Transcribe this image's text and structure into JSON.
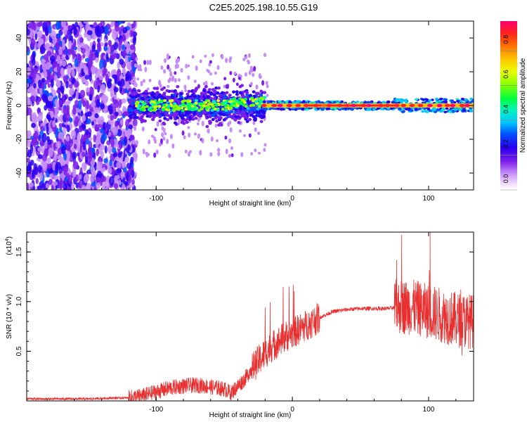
{
  "title": "C2E5.2025.198.10.55.G19",
  "spectrogram": {
    "type": "heatmap",
    "xlabel": "Height of straight line (km)",
    "ylabel": "Frequency (Hz)",
    "xlim": [
      -195,
      133
    ],
    "ylim": [
      -50,
      50
    ],
    "xticks": [
      -100,
      0,
      100
    ],
    "yticks": [
      -40,
      -20,
      0,
      20,
      40
    ],
    "colorbar": {
      "label": "Normalized spectral amplitude",
      "range": [
        0,
        0.97
      ],
      "ticks": [
        "0.0",
        "0.2",
        "0.4",
        "0.6",
        "0.8"
      ],
      "tick_values": [
        0,
        0.2,
        0.4,
        0.6,
        0.8
      ]
    }
  },
  "chart_data": {
    "type": "line",
    "title": "",
    "xlabel": "Height of straight line (km)",
    "ylabel": "SNR (10 * v/v)",
    "yscale_label": "(x10",
    "yscale_exp": "4",
    "yscale_close": ")",
    "xlim": [
      -195,
      133
    ],
    "ylim": [
      0,
      1.7
    ],
    "xticks": [
      -100,
      0,
      100
    ],
    "yticks": [
      "0.5",
      "1.0",
      "1.5"
    ],
    "ytick_values": [
      0.5,
      1.0,
      1.5
    ],
    "color": "#e83030",
    "series": [
      {
        "x": [
          -195,
          -170,
          -150,
          -130,
          -120,
          -110,
          -100,
          -90,
          -80,
          -70,
          -60,
          -50,
          -45,
          -40,
          -35,
          -30,
          -25,
          -20,
          -15,
          -10,
          -5,
          0,
          10,
          20,
          30,
          40,
          50,
          60,
          70,
          75,
          80,
          90,
          100,
          110,
          120,
          133
        ],
        "y": [
          0.02,
          0.02,
          0.02,
          0.03,
          0.03,
          0.05,
          0.09,
          0.13,
          0.15,
          0.16,
          0.14,
          0.12,
          0.08,
          0.15,
          0.22,
          0.32,
          0.4,
          0.48,
          0.55,
          0.6,
          0.65,
          0.68,
          0.76,
          0.84,
          0.9,
          0.92,
          0.93,
          0.93,
          0.93,
          0.94,
          0.95,
          0.94,
          0.9,
          0.86,
          0.82,
          0.8
        ]
      }
    ]
  }
}
